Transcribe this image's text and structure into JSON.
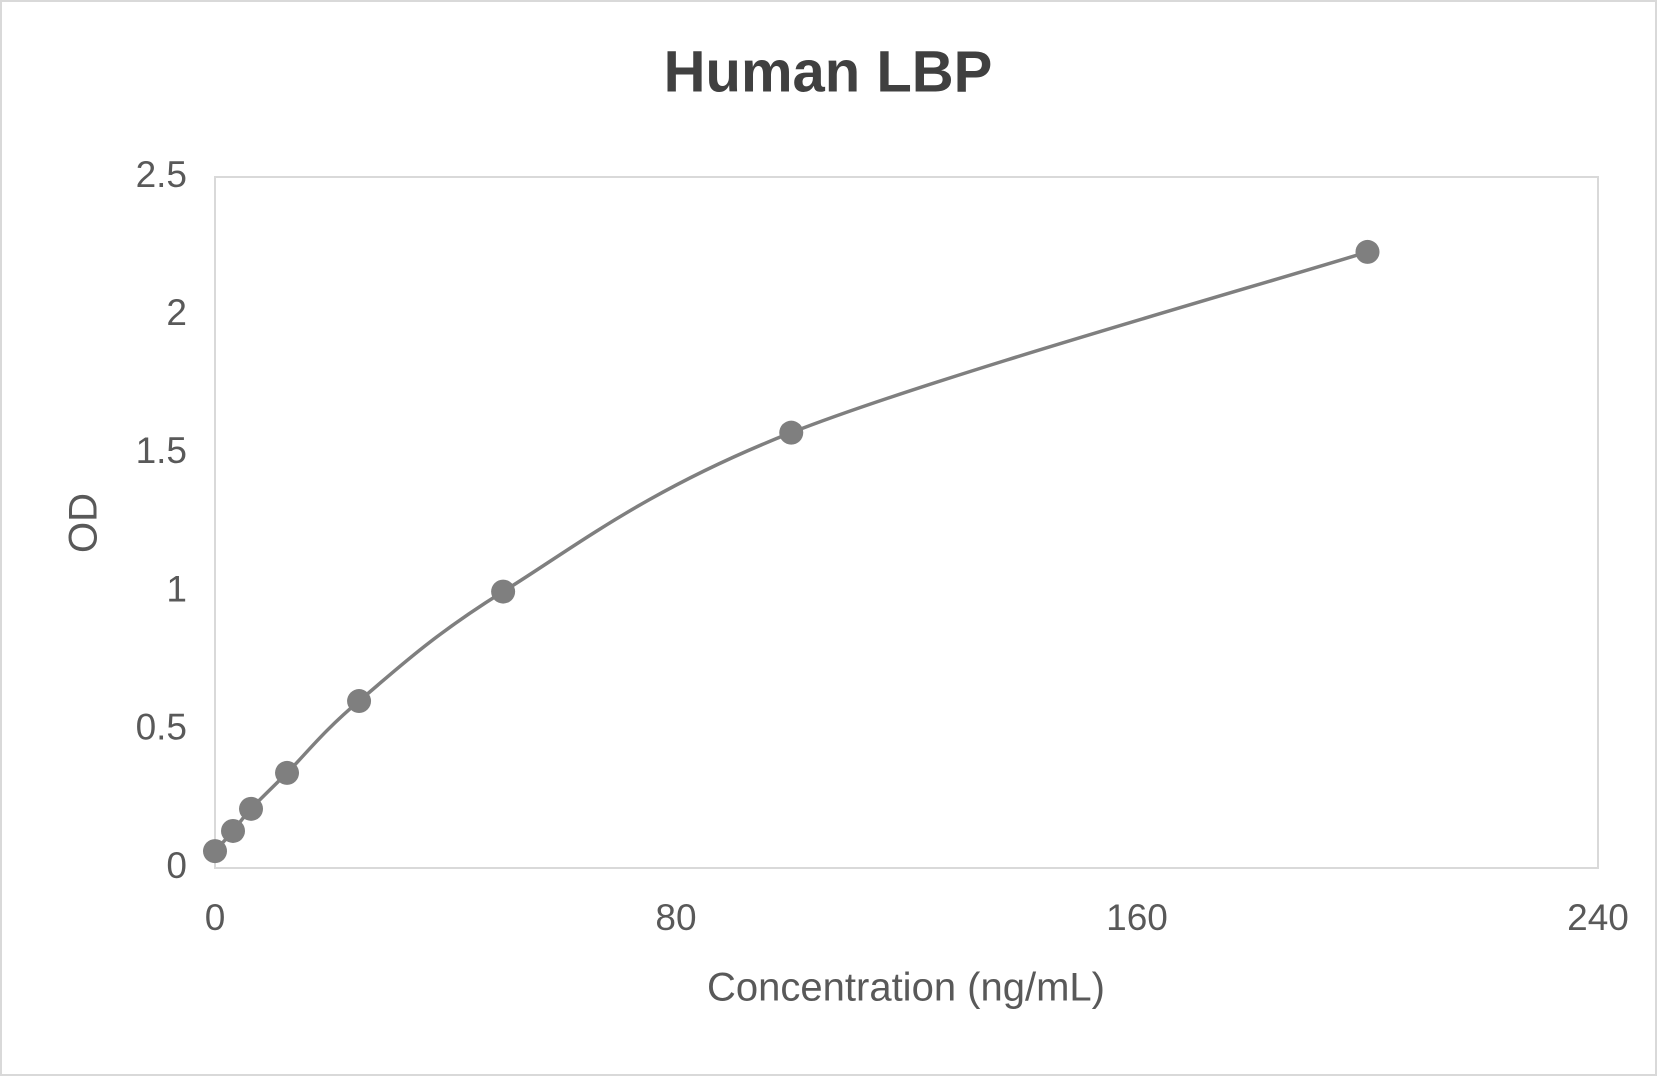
{
  "chart_data": {
    "type": "scatter",
    "title": "Human LBP",
    "x_label": "Concentration (ng/mL)",
    "y_label": "OD",
    "x": [
      0,
      3.125,
      6.25,
      12.5,
      25,
      50,
      100,
      200
    ],
    "series": [
      {
        "color": "#7f7f7f",
        "values": [
          0.061,
          0.134,
          0.214,
          0.344,
          0.604,
          1.0,
          1.575,
          2.229
        ]
      }
    ],
    "line": "smooth",
    "xlim": [
      0,
      240
    ],
    "xticks": [
      0,
      80,
      160,
      240
    ],
    "ylim": [
      0,
      2.5
    ],
    "yticks": [
      0,
      0.5,
      1,
      1.5,
      2,
      2.5
    ],
    "grid": false
  }
}
